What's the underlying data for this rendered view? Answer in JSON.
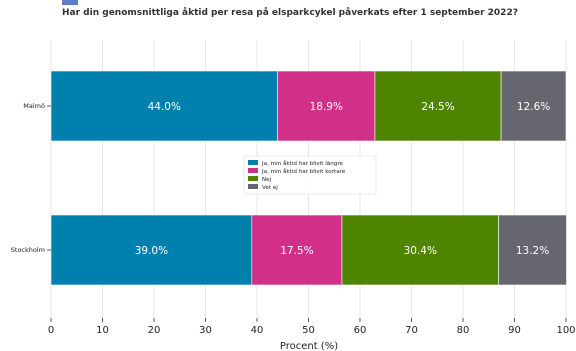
{
  "page_title": "Har din genomsnittliga åktid per resa på elsparkcykel påverkats efter 1 september 2022?",
  "chart_data": {
    "type": "bar",
    "orientation": "horizontal",
    "stacked": true,
    "title": "Har din genomsnittliga åktid per resa på elsparkcykel påverkats efter 1 september 2022?",
    "xlabel": "Procent (%)",
    "ylabel": "",
    "xlim": [
      0,
      100
    ],
    "xticks": [
      0,
      10,
      20,
      30,
      40,
      50,
      60,
      70,
      80,
      90,
      100
    ],
    "grid": true,
    "legend_position": "center",
    "categories": [
      "Malmö",
      "Stockholm"
    ],
    "series": [
      {
        "name": "Ja, min åktid har blivit längre",
        "color": "#0080ad",
        "values": [
          44.0,
          39.0
        ]
      },
      {
        "name": "Ja, min åktid har blivit kortare",
        "color": "#d22f88",
        "values": [
          18.9,
          17.5
        ]
      },
      {
        "name": "Nej",
        "color": "#4f8400",
        "values": [
          24.5,
          30.4
        ]
      },
      {
        "name": "Vet ej",
        "color": "#666670",
        "values": [
          12.6,
          13.2
        ]
      }
    ]
  }
}
